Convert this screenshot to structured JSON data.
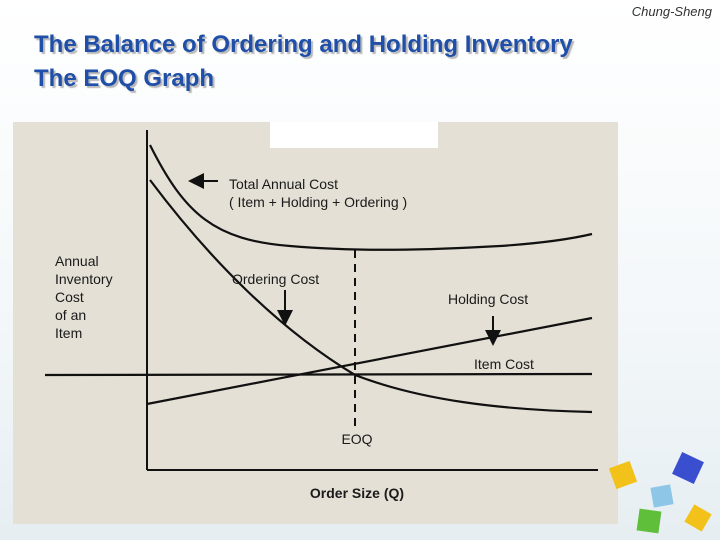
{
  "header": {
    "author": "Chung-Sheng"
  },
  "title": {
    "line1": "The Balance of Ordering and Holding Inventory",
    "line2": "The EOQ Graph"
  },
  "figure": {
    "y_axis_label": [
      "Annual",
      "Inventory",
      "Cost",
      "of an",
      "Item"
    ],
    "x_axis_label": "Order Size (Q)",
    "eoq_label": "EOQ",
    "total_cost_label": [
      "Total Annual Cost",
      "( Item + Holding + Ordering )"
    ],
    "ordering_cost_label": "Ordering Cost",
    "holding_cost_label": "Holding Cost",
    "item_cost_label": "Item Cost"
  }
}
